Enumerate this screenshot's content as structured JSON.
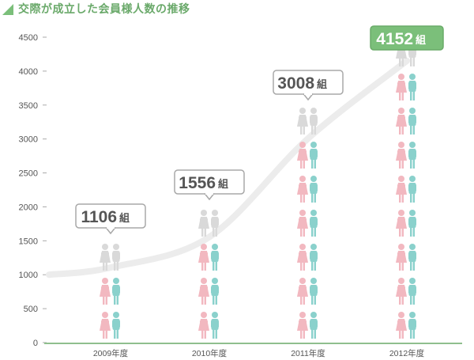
{
  "title": "交際が成立した会員様人数の推移",
  "colors": {
    "accent": "#7bbf7a",
    "trend": "#ececec",
    "female": "#f2b8c0",
    "male": "#8ad1cc",
    "ghost": "#d9d9d9",
    "axis": "#8fbf8e"
  },
  "chart_data": {
    "type": "bar",
    "categories": [
      "2009年度",
      "2010年度",
      "2011年度",
      "2012年度"
    ],
    "values": [
      1106,
      1556,
      3008,
      4152
    ],
    "unit": "組",
    "ylim": [
      0,
      4500
    ],
    "yticks": [
      0,
      500,
      1000,
      1500,
      2000,
      2500,
      3000,
      3500,
      4000,
      4500
    ],
    "grid": false,
    "highlight_index": 3,
    "trend_line": true
  }
}
